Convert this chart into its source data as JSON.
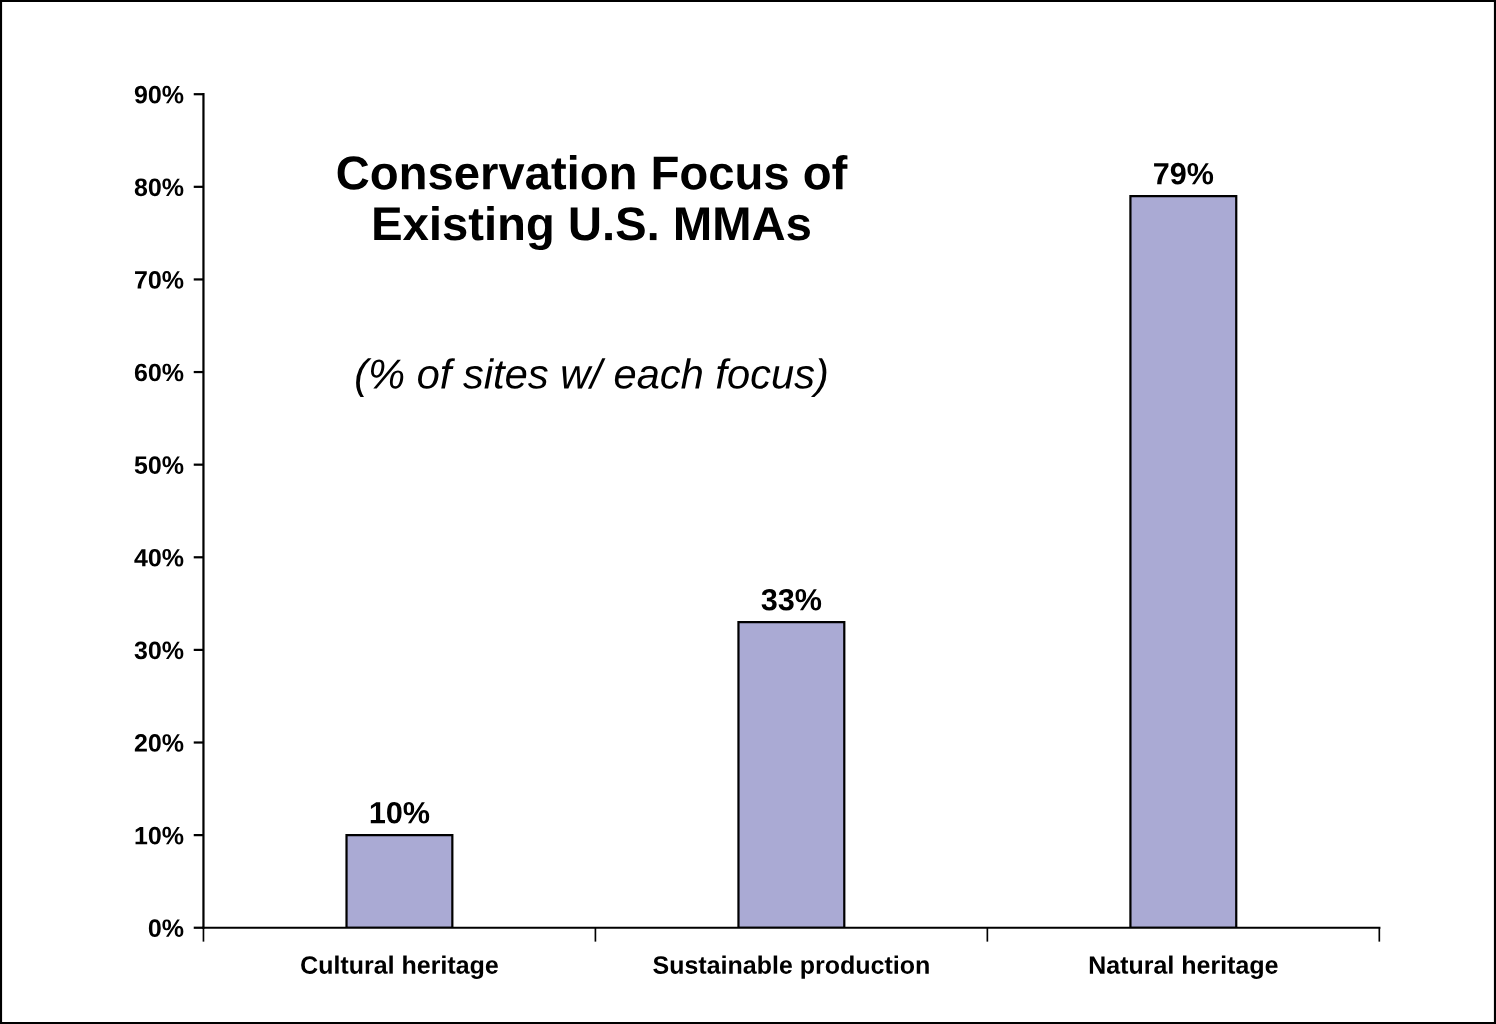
{
  "chart_data": {
    "type": "bar",
    "title": "Conservation Focus of\nExisting U.S. MMAs",
    "subtitle": "(% of sites w/ each focus)",
    "categories": [
      "Cultural heritage",
      "Sustainable production",
      "Natural heritage"
    ],
    "values": [
      10,
      33,
      79
    ],
    "value_labels": [
      "10%",
      "33%",
      "79%"
    ],
    "color": "#aaaad4",
    "ylim": [
      0,
      90
    ],
    "yticks": [
      {
        "value": 0,
        "label": "0%"
      },
      {
        "value": 10,
        "label": "10%"
      },
      {
        "value": 20,
        "label": "20%"
      },
      {
        "value": 30,
        "label": "30%"
      },
      {
        "value": 40,
        "label": "40%"
      },
      {
        "value": 50,
        "label": "50%"
      },
      {
        "value": 60,
        "label": "60%"
      },
      {
        "value": 70,
        "label": "70%"
      },
      {
        "value": 80,
        "label": "80%"
      },
      {
        "value": 90,
        "label": "90%"
      }
    ],
    "grid": false,
    "legend": false
  }
}
